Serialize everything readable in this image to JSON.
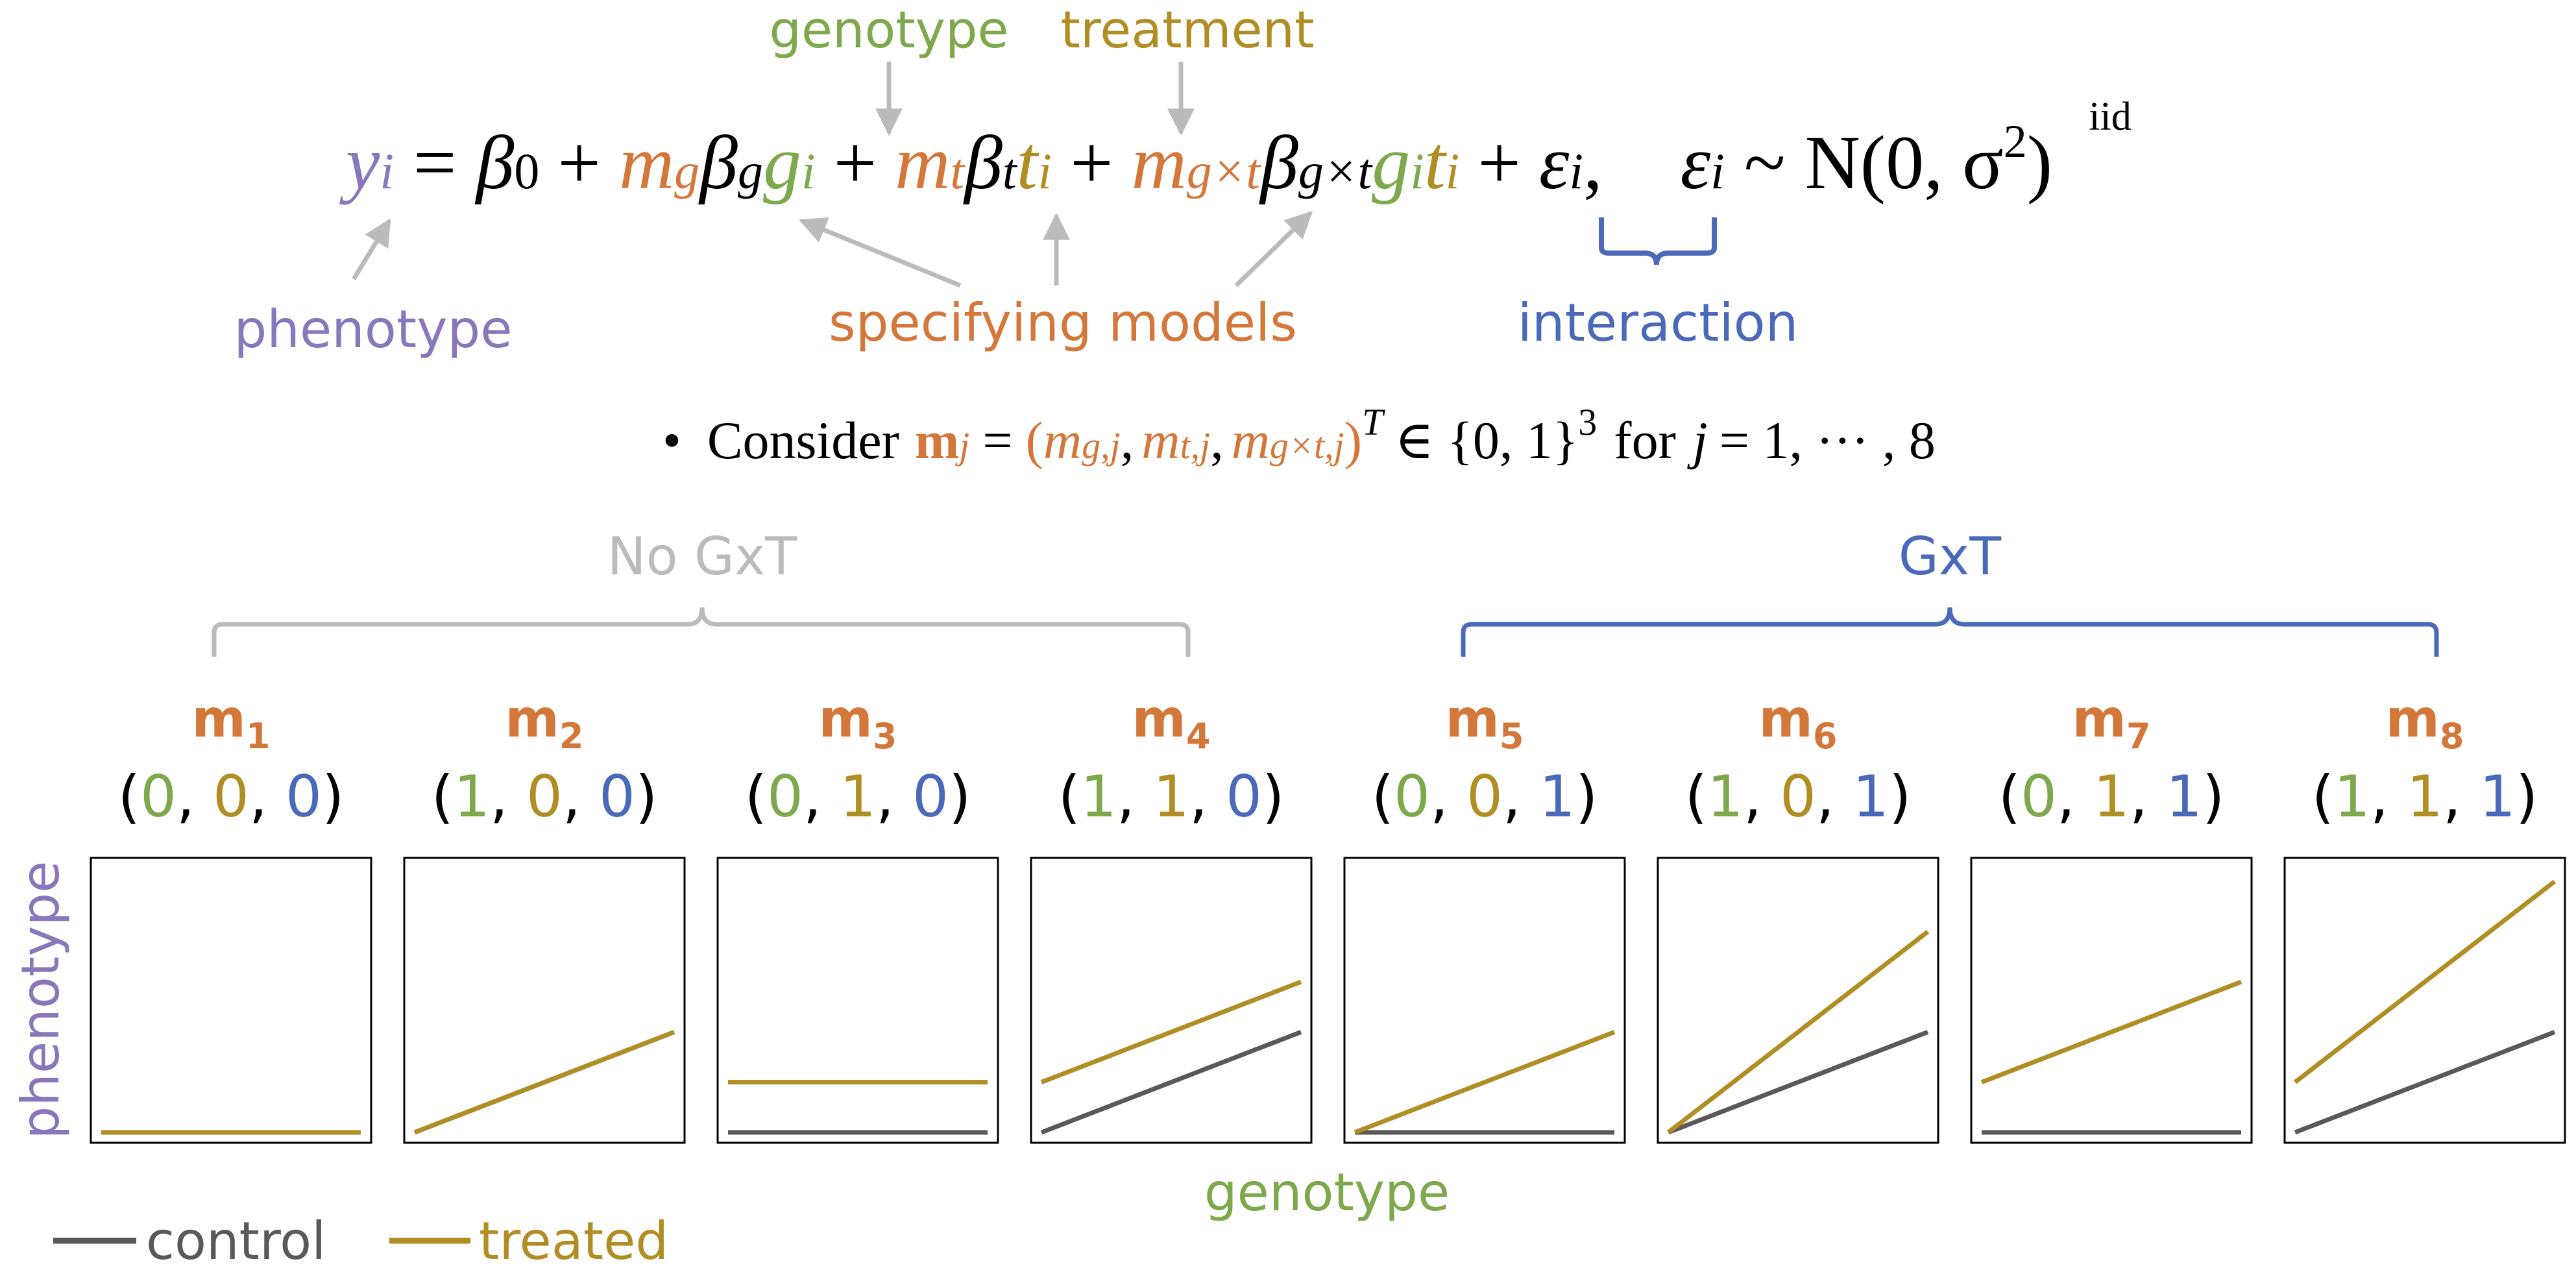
{
  "colors": {
    "purple": "#8877BB",
    "orange": "#D4773A",
    "green": "#7DA84B",
    "gold": "#B08E24",
    "blue": "#4A69B8",
    "gray": "#BBBBBB",
    "dark_gray": "#595959",
    "black": "#000000"
  },
  "annotations": {
    "genotype": "genotype",
    "treatment": "treatment",
    "phenotype": "phenotype",
    "specifying_models": "specifying models",
    "interaction": "interaction"
  },
  "equation": {
    "y": "y",
    "i": "i",
    "eq": "=",
    "beta": "β",
    "zero": "0",
    "plus": "+",
    "m": "m",
    "g": "g",
    "t": "t",
    "gxt": "g×t",
    "eps": "ε",
    "comma": ",",
    "iid": "iid",
    "tilde": "~",
    "normal": "N(0, σ",
    "sq": "2",
    "close": ")"
  },
  "consider": {
    "bullet": "•",
    "word": "Consider",
    "m_bold": "m",
    "j": "j",
    "eq": "=",
    "lparen": "(",
    "m": "m",
    "g_j": "g,j",
    "sep": ",",
    "t_j": "t,j",
    "gxt_j": "g×t,j",
    "rparen": ")",
    "T": "T",
    "in_set": "∈ {0, 1}",
    "cube": "3",
    "for_word": "for",
    "j_range": "= 1, ··· , 8"
  },
  "groups": {
    "no_gxt": "No GxT",
    "gxt": "GxT"
  },
  "axes": {
    "y_label": "phenotype",
    "x_label": "genotype"
  },
  "legend": {
    "control": "control",
    "treated": "treated"
  },
  "chart_data": {
    "type": "line",
    "xlabel": "genotype",
    "ylabel": "phenotype",
    "x": [
      0,
      1
    ],
    "ylim": [
      0,
      1
    ],
    "legend": [
      "control",
      "treated"
    ],
    "panels": [
      {
        "label": "m",
        "index": "1",
        "vector": [
          "0",
          "0",
          "0"
        ],
        "control": [
          0,
          0
        ],
        "treated": [
          0,
          0
        ]
      },
      {
        "label": "m",
        "index": "2",
        "vector": [
          "1",
          "0",
          "0"
        ],
        "control": [
          0,
          0.38
        ],
        "treated": [
          0,
          0.38
        ]
      },
      {
        "label": "m",
        "index": "3",
        "vector": [
          "0",
          "1",
          "0"
        ],
        "control": [
          0,
          0
        ],
        "treated": [
          0.19,
          0.19
        ]
      },
      {
        "label": "m",
        "index": "4",
        "vector": [
          "1",
          "1",
          "0"
        ],
        "control": [
          0,
          0.38
        ],
        "treated": [
          0.19,
          0.57
        ]
      },
      {
        "label": "m",
        "index": "5",
        "vector": [
          "0",
          "0",
          "1"
        ],
        "control": [
          0,
          0
        ],
        "treated": [
          0,
          0.38
        ]
      },
      {
        "label": "m",
        "index": "6",
        "vector": [
          "1",
          "0",
          "1"
        ],
        "control": [
          0,
          0.38
        ],
        "treated": [
          0,
          0.76
        ]
      },
      {
        "label": "m",
        "index": "7",
        "vector": [
          "0",
          "1",
          "1"
        ],
        "control": [
          0,
          0
        ],
        "treated": [
          0.19,
          0.57
        ]
      },
      {
        "label": "m",
        "index": "8",
        "vector": [
          "1",
          "1",
          "1"
        ],
        "control": [
          0,
          0.38
        ],
        "treated": [
          0.19,
          0.95
        ]
      }
    ]
  }
}
